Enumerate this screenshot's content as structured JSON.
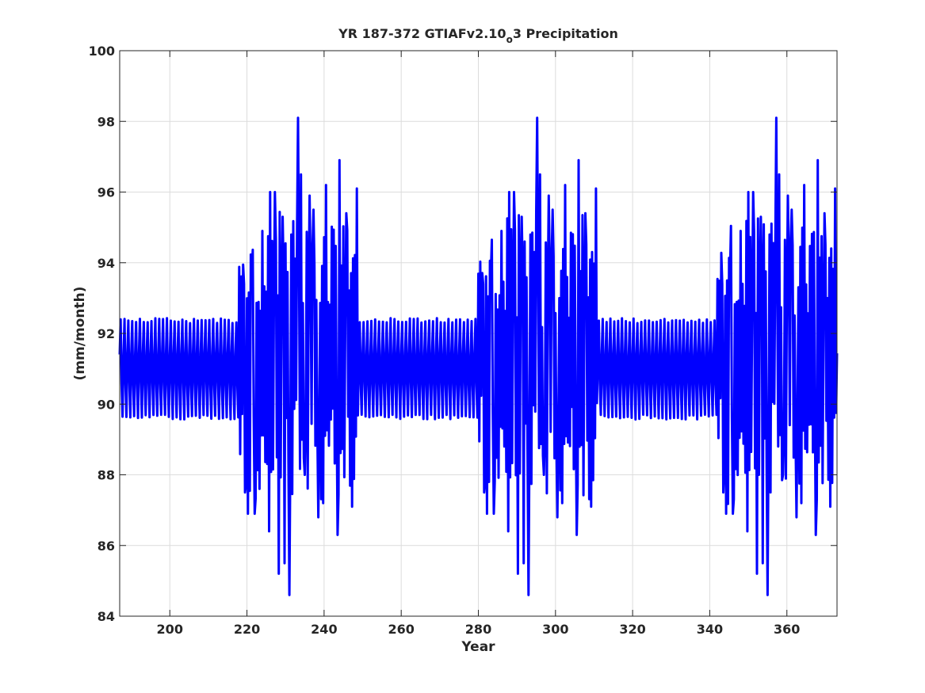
{
  "chart_data": {
    "type": "line",
    "title_main": "YR 187-372 GTIAFv2.10",
    "title_sub": "o",
    "title_tail": "3 Precipitation",
    "xlabel": "Year",
    "ylabel": "(mm/month)",
    "xlim": [
      187,
      373
    ],
    "ylim": [
      84,
      100
    ],
    "xticks": [
      200,
      220,
      240,
      260,
      280,
      300,
      320,
      340,
      360
    ],
    "yticks": [
      84,
      86,
      88,
      90,
      92,
      94,
      96,
      98,
      100
    ],
    "grid": true,
    "series": [
      {
        "color": "#0000ff",
        "samples_per_year": 4,
        "repeat_period_years": 62,
        "x_start": 187,
        "x_end": 373,
        "quiet_envelope": {
          "low": 89.5,
          "high": 92.5
        },
        "active_intervals": [
          [
            218,
            249
          ],
          [
            280,
            311
          ],
          [
            342,
            373
          ]
        ],
        "active_peaks": [
          {
            "x": 219.2,
            "y": 93.4
          },
          {
            "x": 219.6,
            "y": 87.5
          },
          {
            "x": 220.3,
            "y": 86.9
          },
          {
            "x": 221.3,
            "y": 93.7
          },
          {
            "x": 222.0,
            "y": 86.9
          },
          {
            "x": 224.0,
            "y": 94.9
          },
          {
            "x": 225.7,
            "y": 86.4
          },
          {
            "x": 226.1,
            "y": 96.0
          },
          {
            "x": 227.3,
            "y": 96.0
          },
          {
            "x": 228.3,
            "y": 85.2
          },
          {
            "x": 229.2,
            "y": 95.3
          },
          {
            "x": 229.7,
            "y": 85.5
          },
          {
            "x": 231.1,
            "y": 84.6
          },
          {
            "x": 231.6,
            "y": 94.8
          },
          {
            "x": 233.2,
            "y": 98.1
          },
          {
            "x": 234.0,
            "y": 96.5
          },
          {
            "x": 234.9,
            "y": 88.0
          },
          {
            "x": 236.3,
            "y": 95.9
          },
          {
            "x": 237.3,
            "y": 95.5
          },
          {
            "x": 238.6,
            "y": 86.8
          },
          {
            "x": 239.8,
            "y": 87.2
          },
          {
            "x": 240.6,
            "y": 96.2
          },
          {
            "x": 243.4,
            "y": 86.3
          },
          {
            "x": 244.0,
            "y": 96.9
          },
          {
            "x": 245.8,
            "y": 95.4
          },
          {
            "x": 247.3,
            "y": 87.1
          },
          {
            "x": 248.4,
            "y": 96.1
          }
        ]
      }
    ]
  }
}
